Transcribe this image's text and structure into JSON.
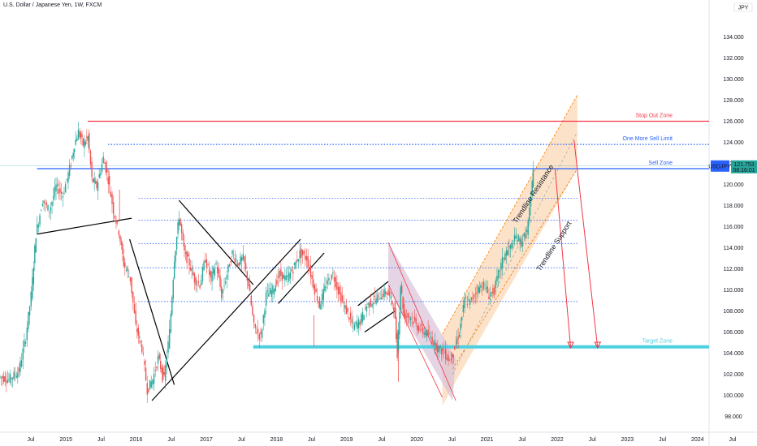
{
  "header": {
    "title": "U.S. Dollar / Japanese Yen, 1W, FXCM"
  },
  "colors": {
    "up": "#26a69a",
    "down": "#ef5350",
    "resistance": "#f23645",
    "sell": "#2962ff",
    "target": "#4dd0e1",
    "price_tag": "#2962ff",
    "channel_fill": "#fbd5b0",
    "down_channel_fill": "#d8c2d8"
  },
  "chart_data": {
    "type": "candlestick",
    "symbol": "USDJPY",
    "last_price": "121.753",
    "countdown": "08:16:01",
    "currency_badge": "JPY",
    "y_axis": {
      "min": 96.5,
      "max": 137.5,
      "ticks": [
        "98.000",
        "100.000",
        "102.000",
        "104.000",
        "106.000",
        "108.000",
        "110.000",
        "112.000",
        "114.000",
        "116.000",
        "118.000",
        "120.000",
        "122.000",
        "124.000",
        "126.000",
        "128.000",
        "130.000",
        "132.000",
        "134.000"
      ]
    },
    "x_axis": {
      "ticks": [
        "Jul",
        "2015",
        "Jul",
        "2016",
        "Jul",
        "2017",
        "Jul",
        "2018",
        "Jul",
        "2019",
        "Jul",
        "2020",
        "Jul",
        "2021",
        "Jul",
        "2022",
        "Jul",
        "2023",
        "Jul",
        "2024",
        "Jul"
      ],
      "start": 2014.3,
      "end": 2024.8
    },
    "price_path": [
      [
        2014.3,
        101.8
      ],
      [
        2014.45,
        101.5
      ],
      [
        2014.6,
        102.3
      ],
      [
        2014.7,
        105.5
      ],
      [
        2014.78,
        109.5
      ],
      [
        2014.85,
        115.3
      ],
      [
        2014.95,
        118.5
      ],
      [
        2015.05,
        117.5
      ],
      [
        2015.15,
        119.8
      ],
      [
        2015.25,
        119.0
      ],
      [
        2015.35,
        121.5
      ],
      [
        2015.42,
        123.8
      ],
      [
        2015.48,
        125.0
      ],
      [
        2015.55,
        123.8
      ],
      [
        2015.62,
        124.5
      ],
      [
        2015.68,
        120.5
      ],
      [
        2015.75,
        119.8
      ],
      [
        2015.85,
        122.5
      ],
      [
        2015.92,
        120.5
      ],
      [
        2016.0,
        117.5
      ],
      [
        2016.08,
        115.5
      ],
      [
        2016.15,
        112.5
      ],
      [
        2016.25,
        111.0
      ],
      [
        2016.33,
        106.5
      ],
      [
        2016.42,
        104.5
      ],
      [
        2016.5,
        100.5
      ],
      [
        2016.58,
        101.5
      ],
      [
        2016.66,
        103.5
      ],
      [
        2016.75,
        101.5
      ],
      [
        2016.83,
        106.0
      ],
      [
        2016.9,
        113.0
      ],
      [
        2016.97,
        117.0
      ],
      [
        2017.05,
        113.5
      ],
      [
        2017.12,
        112.5
      ],
      [
        2017.2,
        111.0
      ],
      [
        2017.28,
        110.5
      ],
      [
        2017.36,
        113.0
      ],
      [
        2017.44,
        111.0
      ],
      [
        2017.52,
        112.5
      ],
      [
        2017.6,
        109.5
      ],
      [
        2017.68,
        111.5
      ],
      [
        2017.76,
        113.5
      ],
      [
        2017.84,
        112.5
      ],
      [
        2017.92,
        113.0
      ],
      [
        2018.0,
        110.5
      ],
      [
        2018.08,
        106.5
      ],
      [
        2018.18,
        105.5
      ],
      [
        2018.26,
        109.5
      ],
      [
        2018.36,
        110.0
      ],
      [
        2018.46,
        111.5
      ],
      [
        2018.56,
        111.0
      ],
      [
        2018.66,
        112.0
      ],
      [
        2018.76,
        113.5
      ],
      [
        2018.86,
        113.0
      ],
      [
        2018.98,
        110.0
      ],
      [
        2019.05,
        108.5
      ],
      [
        2019.15,
        110.5
      ],
      [
        2019.25,
        111.5
      ],
      [
        2019.35,
        109.5
      ],
      [
        2019.45,
        108.0
      ],
      [
        2019.55,
        106.5
      ],
      [
        2019.65,
        107.0
      ],
      [
        2019.75,
        108.5
      ],
      [
        2019.85,
        109.0
      ],
      [
        2019.95,
        109.5
      ],
      [
        2020.05,
        109.8
      ],
      [
        2020.15,
        108.5
      ],
      [
        2020.2,
        104.0
      ],
      [
        2020.25,
        110.5
      ],
      [
        2020.3,
        107.5
      ],
      [
        2020.4,
        107.5
      ],
      [
        2020.5,
        106.5
      ],
      [
        2020.6,
        106.0
      ],
      [
        2020.7,
        105.5
      ],
      [
        2020.8,
        104.5
      ],
      [
        2020.9,
        104.0
      ],
      [
        2020.98,
        103.3
      ],
      [
        2021.05,
        104.5
      ],
      [
        2021.12,
        106.0
      ],
      [
        2021.2,
        109.0
      ],
      [
        2021.28,
        108.8
      ],
      [
        2021.38,
        110.0
      ],
      [
        2021.48,
        110.5
      ],
      [
        2021.56,
        109.5
      ],
      [
        2021.64,
        110.0
      ],
      [
        2021.72,
        112.0
      ],
      [
        2021.8,
        113.5
      ],
      [
        2021.88,
        114.0
      ],
      [
        2021.96,
        115.0
      ],
      [
        2022.04,
        114.5
      ],
      [
        2022.12,
        115.5
      ],
      [
        2022.18,
        118.5
      ],
      [
        2022.21,
        121.75
      ]
    ],
    "spikes": [
      [
        2018.95,
        104.6
      ],
      [
        2020.2,
        101.3
      ],
      [
        2016.07,
        116.5
      ]
    ],
    "horizontal_levels": [
      {
        "name": "Stop Out Zone",
        "price": 126.0,
        "style": "solid",
        "color": "#f23645"
      },
      {
        "name": "One More Sell Limit",
        "price": 123.8,
        "style": "dotted",
        "color": "#2962ff"
      },
      {
        "name": "Sell Zone",
        "price": 121.5,
        "style": "solid",
        "color": "#2962ff"
      },
      {
        "name": "Target Zone",
        "price": 104.6,
        "style": "thick",
        "color": "#4dd0e1"
      }
    ],
    "dotted_levels": [
      118.7,
      116.6,
      114.4,
      112.1,
      108.9
    ],
    "annotations": {
      "trendline_resistance": "Trendline Resistance",
      "trendline_support": "Trendline Support"
    }
  }
}
